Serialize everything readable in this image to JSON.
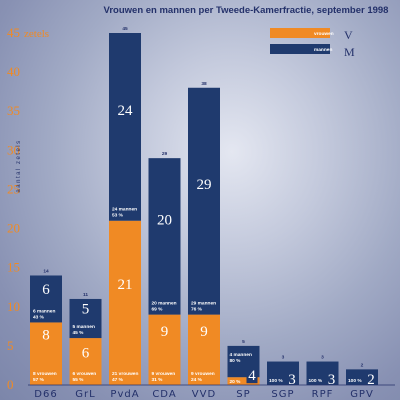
{
  "chart_data": {
    "type": "bar",
    "stacked": true,
    "title": "Vrouwen en mannen per Tweede-Kamerfractie, september 1998",
    "ylabel": "aantal zetels",
    "y_unit": "zetels",
    "ylim": [
      0,
      45
    ],
    "yticks": [
      0,
      5,
      10,
      15,
      20,
      25,
      30,
      35,
      40,
      45
    ],
    "categories": [
      "D66",
      "GrL",
      "PvdA",
      "CDA",
      "VVD",
      "SP",
      "SGP",
      "RPF",
      "GPV"
    ],
    "totals": [
      14,
      11,
      45,
      29,
      38,
      5,
      3,
      3,
      2
    ],
    "series": [
      {
        "name": "vrouwen",
        "letter": "V",
        "color": "#f08a24",
        "values": [
          8,
          6,
          21,
          9,
          9,
          1,
          0,
          0,
          0
        ],
        "labels": [
          "",
          "",
          "",
          "",
          "",
          "4",
          "",
          "",
          ""
        ],
        "notes": [
          [
            "8 vrouwen",
            "57 %"
          ],
          [
            "6 vrouwen",
            "55 %"
          ],
          [
            "21 vrouwen",
            "47 %"
          ],
          [
            "9 vrouwen",
            "31 %"
          ],
          [
            "9 vrouwen",
            "24 %"
          ],
          [
            "20 %"
          ],
          [],
          [],
          []
        ]
      },
      {
        "name": "mannen",
        "letter": "M",
        "color": "#1f3a6e",
        "values": [
          6,
          5,
          24,
          20,
          29,
          4,
          3,
          3,
          2
        ],
        "labels": [
          "",
          "",
          "",
          "",
          "",
          "",
          "",
          "",
          ""
        ],
        "notes": [
          [
            "6 mannen",
            "43 %"
          ],
          [
            "5 mannen",
            "45 %"
          ],
          [
            "24 mannen",
            "53 %"
          ],
          [
            "20 mannen",
            "69 %"
          ],
          [
            "29 mannen",
            "76 %"
          ],
          [
            "4 mannen",
            "80 %"
          ],
          [
            "100 %"
          ],
          [
            "100 %"
          ],
          [
            "100 %"
          ]
        ]
      }
    ],
    "legend": "top-right",
    "grid": false
  }
}
